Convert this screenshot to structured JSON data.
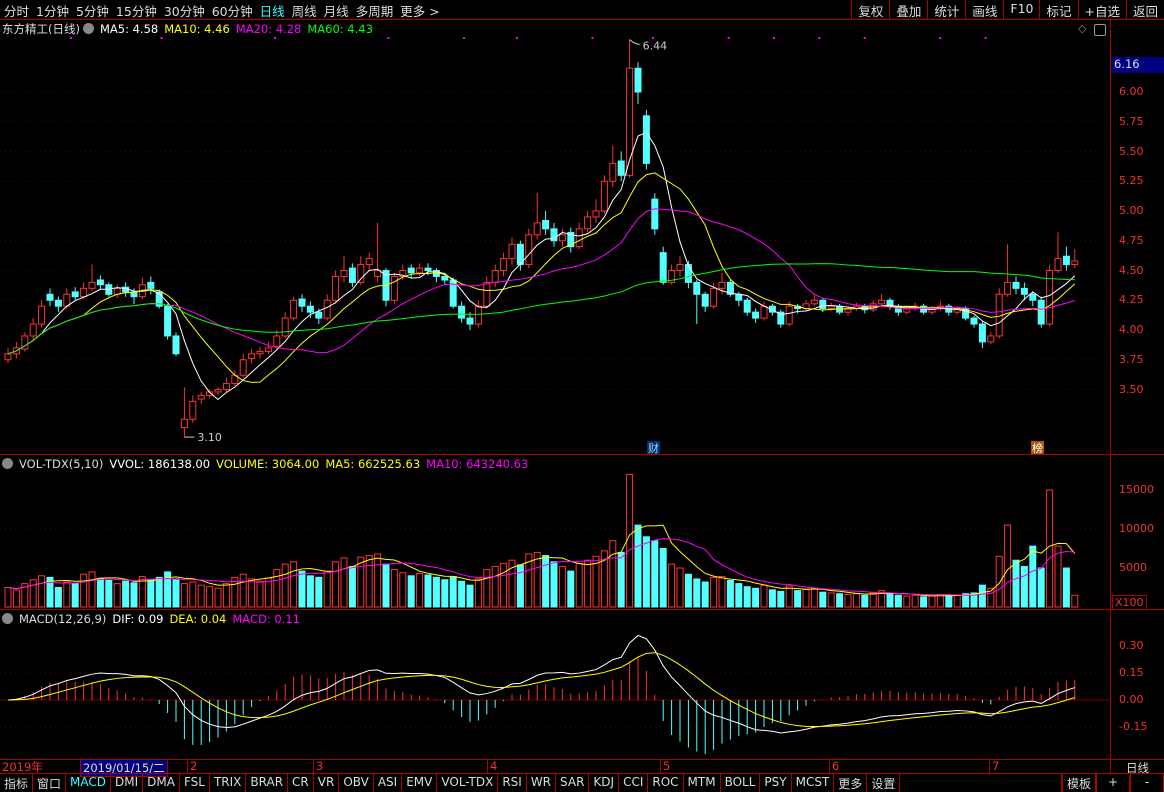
{
  "topbar": {
    "periods": [
      "分时",
      "1分钟",
      "5分钟",
      "15分钟",
      "30分钟",
      "60分钟",
      "日线",
      "周线",
      "月线",
      "多周期",
      "更多 >"
    ],
    "active": "日线",
    "actions": [
      "复权",
      "叠加",
      "统计",
      "画线",
      "F10",
      "标记",
      "+自选",
      "返回"
    ]
  },
  "price_legend": {
    "title": "东方精工(日线)",
    "ma5": "MA5: 4.58",
    "ma10": "MA10: 4.46",
    "ma20": "MA20: 4.28",
    "ma60": "MA60: 4.43"
  },
  "vol_legend": {
    "title": "VOL-TDX(5,10)",
    "vvol": "VVOL: 186138.00",
    "volume": "VOLUME: 3064.00",
    "ma5": "MA5: 662525.63",
    "ma10": "MA10: 643240.63"
  },
  "macd_legend": {
    "title": "MACD(12,26,9)",
    "dif": "DIF: 0.09",
    "dea": "DEA: 0.04",
    "macd": "MACD: 0.11"
  },
  "annotations": {
    "high": "6.44",
    "low": "3.10",
    "marker_cai": "财",
    "marker_bang": "榜",
    "cursor_price": "6.16",
    "vol_unit": "X100"
  },
  "dates": {
    "year": "2019年",
    "cursor_date": "2019/01/15/二",
    "months": [
      "2",
      "3",
      "4",
      "5",
      "6",
      "7"
    ],
    "period_label": "日线"
  },
  "bottombar": {
    "tabs": [
      "指标",
      "窗口",
      "MACD",
      "DMI",
      "DMA",
      "FSL",
      "TRIX",
      "BRAR",
      "CR",
      "VR",
      "OBV",
      "ASI",
      "EMV",
      "VOL-TDX",
      "RSI",
      "WR",
      "SAR",
      "KDJ",
      "CCI",
      "ROC",
      "MTM",
      "BOLL",
      "PSY",
      "MCST",
      "更多",
      "设置"
    ],
    "active": "MACD",
    "right": [
      "模板",
      "+",
      "-"
    ]
  },
  "colors": {
    "up": "#ff3232",
    "down": "#54ffff",
    "ma5": "#ffffff",
    "ma10": "#ffff00",
    "ma20": "#ff00ff",
    "ma60": "#00ff00",
    "axis": "#e33333"
  },
  "chart_data": [
    {
      "type": "candlestick",
      "title": "东方精工(日线)",
      "yticks": [
        "6.00",
        "5.75",
        "5.50",
        "5.25",
        "5.00",
        "4.75",
        "4.50",
        "4.25",
        "4.00",
        "3.75",
        "3.50"
      ],
      "ylim": [
        2.95,
        6.6
      ],
      "columns": [
        "open",
        "high",
        "low",
        "close",
        "volume"
      ],
      "candles": [
        [
          3.75,
          3.85,
          3.72,
          3.8,
          2500
        ],
        [
          3.8,
          3.9,
          3.76,
          3.85,
          2200
        ],
        [
          3.84,
          3.98,
          3.82,
          3.95,
          3000
        ],
        [
          3.95,
          4.1,
          3.92,
          4.05,
          3500
        ],
        [
          4.05,
          4.25,
          4.02,
          4.2,
          4000
        ],
        [
          4.3,
          4.35,
          4.2,
          4.25,
          3800
        ],
        [
          4.25,
          4.28,
          4.15,
          4.2,
          2500
        ],
        [
          4.2,
          4.35,
          4.18,
          4.3,
          3200
        ],
        [
          4.32,
          4.36,
          4.25,
          4.28,
          3000
        ],
        [
          4.28,
          4.4,
          4.26,
          4.35,
          4200
        ],
        [
          4.35,
          4.55,
          4.33,
          4.4,
          4500
        ],
        [
          4.42,
          4.46,
          4.34,
          4.38,
          3600
        ],
        [
          4.38,
          4.4,
          4.28,
          4.3,
          3400
        ],
        [
          4.3,
          4.38,
          4.27,
          4.35,
          3000
        ],
        [
          4.36,
          4.4,
          4.28,
          4.32,
          3300
        ],
        [
          4.32,
          4.35,
          4.22,
          4.28,
          3100
        ],
        [
          4.28,
          4.44,
          4.26,
          4.38,
          3900
        ],
        [
          4.4,
          4.45,
          4.3,
          4.35,
          3500
        ],
        [
          4.32,
          4.34,
          4.18,
          4.2,
          3800
        ],
        [
          4.2,
          4.22,
          3.92,
          3.95,
          4500
        ],
        [
          3.95,
          3.98,
          3.78,
          3.8,
          3600
        ],
        [
          3.18,
          3.52,
          3.1,
          3.25,
          3000
        ],
        [
          3.25,
          3.45,
          3.22,
          3.4,
          3200
        ],
        [
          3.42,
          3.48,
          3.38,
          3.45,
          2800
        ],
        [
          3.45,
          3.5,
          3.43,
          3.48,
          2600
        ],
        [
          3.48,
          3.52,
          3.45,
          3.5,
          2400
        ],
        [
          3.5,
          3.6,
          3.48,
          3.55,
          3000
        ],
        [
          3.55,
          3.66,
          3.53,
          3.62,
          3800
        ],
        [
          3.62,
          3.8,
          3.6,
          3.75,
          4200
        ],
        [
          3.76,
          3.84,
          3.72,
          3.8,
          3600
        ],
        [
          3.8,
          3.86,
          3.76,
          3.82,
          3300
        ],
        [
          3.82,
          3.9,
          3.8,
          3.85,
          3700
        ],
        [
          3.86,
          4.0,
          3.84,
          3.95,
          4800
        ],
        [
          3.95,
          4.15,
          3.93,
          4.1,
          5500
        ],
        [
          4.1,
          4.28,
          4.08,
          4.25,
          5800
        ],
        [
          4.26,
          4.3,
          4.15,
          4.2,
          4600
        ],
        [
          4.2,
          4.24,
          4.1,
          4.15,
          4000
        ],
        [
          4.15,
          4.18,
          4.05,
          4.1,
          3800
        ],
        [
          4.1,
          4.3,
          4.08,
          4.25,
          4600
        ],
        [
          4.25,
          4.5,
          4.22,
          4.45,
          5800
        ],
        [
          4.45,
          4.62,
          4.4,
          4.5,
          6300
        ],
        [
          4.52,
          4.56,
          4.36,
          4.4,
          5200
        ],
        [
          4.4,
          4.62,
          4.38,
          4.55,
          6400
        ],
        [
          4.55,
          4.65,
          4.5,
          4.6,
          6600
        ],
        [
          4.45,
          4.9,
          4.4,
          4.5,
          6800
        ],
        [
          4.5,
          4.52,
          4.2,
          4.25,
          5500
        ],
        [
          4.25,
          4.48,
          4.22,
          4.45,
          4800
        ],
        [
          4.45,
          4.55,
          4.42,
          4.5,
          4400
        ],
        [
          4.52,
          4.55,
          4.44,
          4.48,
          4000
        ],
        [
          4.48,
          4.56,
          4.45,
          4.52,
          4300
        ],
        [
          4.52,
          4.56,
          4.46,
          4.5,
          4100
        ],
        [
          4.5,
          4.52,
          4.4,
          4.45,
          3800
        ],
        [
          4.45,
          4.48,
          4.38,
          4.42,
          3500
        ],
        [
          4.42,
          4.44,
          4.18,
          4.2,
          3900
        ],
        [
          4.2,
          4.24,
          4.06,
          4.1,
          3300
        ],
        [
          4.1,
          4.15,
          4.0,
          4.05,
          2800
        ],
        [
          4.05,
          4.25,
          4.02,
          4.2,
          3600
        ],
        [
          4.2,
          4.45,
          4.18,
          4.4,
          4800
        ],
        [
          4.4,
          4.55,
          4.36,
          4.5,
          5200
        ],
        [
          4.5,
          4.65,
          4.45,
          4.6,
          5600
        ],
        [
          4.6,
          4.78,
          4.55,
          4.72,
          6000
        ],
        [
          4.72,
          4.75,
          4.5,
          4.55,
          5400
        ],
        [
          4.55,
          4.85,
          4.52,
          4.8,
          6800
        ],
        [
          4.8,
          5.15,
          4.76,
          4.9,
          7000
        ],
        [
          4.92,
          5.0,
          4.8,
          4.85,
          6600
        ],
        [
          4.85,
          4.9,
          4.7,
          4.75,
          5800
        ],
        [
          4.75,
          4.85,
          4.7,
          4.8,
          5200
        ],
        [
          4.82,
          4.86,
          4.65,
          4.7,
          4600
        ],
        [
          4.7,
          4.9,
          4.68,
          4.85,
          5600
        ],
        [
          4.85,
          5.0,
          4.82,
          4.95,
          6000
        ],
        [
          4.95,
          5.1,
          4.9,
          5.0,
          6500
        ],
        [
          5.0,
          5.3,
          4.98,
          5.25,
          7200
        ],
        [
          5.25,
          5.55,
          5.2,
          5.4,
          8500
        ],
        [
          5.42,
          5.5,
          5.25,
          5.3,
          7000
        ],
        [
          5.3,
          6.44,
          5.28,
          6.2,
          17000
        ],
        [
          6.2,
          6.25,
          5.9,
          6.0,
          10500
        ],
        [
          5.8,
          5.85,
          5.35,
          5.4,
          9000
        ],
        [
          5.1,
          5.15,
          4.8,
          4.85,
          8500
        ],
        [
          4.65,
          4.7,
          4.38,
          4.4,
          7500
        ],
        [
          4.4,
          4.55,
          4.38,
          4.5,
          5500
        ],
        [
          4.5,
          4.62,
          4.45,
          4.55,
          5000
        ],
        [
          4.55,
          4.58,
          4.35,
          4.4,
          4200
        ],
        [
          4.4,
          4.42,
          4.05,
          4.3,
          3600
        ],
        [
          4.3,
          4.32,
          4.15,
          4.2,
          3200
        ],
        [
          4.2,
          4.4,
          4.18,
          4.35,
          3800
        ],
        [
          4.35,
          4.48,
          4.3,
          4.4,
          3900
        ],
        [
          4.4,
          4.42,
          4.28,
          4.3,
          3400
        ],
        [
          4.3,
          4.32,
          4.2,
          4.25,
          3000
        ],
        [
          4.25,
          4.27,
          4.12,
          4.15,
          2600
        ],
        [
          4.15,
          4.18,
          4.06,
          4.1,
          2400
        ],
        [
          4.1,
          4.24,
          4.08,
          4.2,
          2800
        ],
        [
          4.2,
          4.22,
          4.12,
          4.15,
          2200
        ],
        [
          4.15,
          4.17,
          4.02,
          4.05,
          2000
        ],
        [
          4.05,
          4.24,
          4.03,
          4.2,
          2700
        ],
        [
          4.2,
          4.22,
          4.14,
          4.18,
          2100
        ],
        [
          4.18,
          4.25,
          4.16,
          4.22,
          2300
        ],
        [
          4.22,
          4.3,
          4.2,
          4.25,
          2400
        ],
        [
          4.25,
          4.27,
          4.15,
          4.18,
          1900
        ],
        [
          4.18,
          4.23,
          4.16,
          4.2,
          1800
        ],
        [
          4.2,
          4.22,
          4.13,
          4.15,
          1700
        ],
        [
          4.15,
          4.2,
          4.12,
          4.18,
          1600
        ],
        [
          4.18,
          4.23,
          4.16,
          4.2,
          1700
        ],
        [
          4.2,
          4.22,
          4.14,
          4.17,
          1500
        ],
        [
          4.17,
          4.25,
          4.15,
          4.22,
          1800
        ],
        [
          4.22,
          4.3,
          4.2,
          4.25,
          2100
        ],
        [
          4.25,
          4.27,
          4.17,
          4.2,
          1700
        ],
        [
          4.2,
          4.22,
          4.12,
          4.15,
          1500
        ],
        [
          4.15,
          4.2,
          4.13,
          4.18,
          1400
        ],
        [
          4.18,
          4.23,
          4.16,
          4.2,
          1500
        ],
        [
          4.2,
          4.22,
          4.13,
          4.15,
          1300
        ],
        [
          4.15,
          4.2,
          4.13,
          4.18,
          1400
        ],
        [
          4.18,
          4.24,
          4.16,
          4.2,
          1600
        ],
        [
          4.2,
          4.22,
          4.12,
          4.15,
          1500
        ],
        [
          4.15,
          4.2,
          4.13,
          4.18,
          1500
        ],
        [
          4.18,
          4.2,
          4.08,
          4.1,
          1700
        ],
        [
          4.1,
          4.12,
          4.02,
          4.05,
          1800
        ],
        [
          4.05,
          4.07,
          3.85,
          3.9,
          2800
        ],
        [
          3.9,
          3.98,
          3.88,
          3.95,
          2400
        ],
        [
          3.95,
          4.35,
          3.93,
          4.3,
          6500
        ],
        [
          4.3,
          4.72,
          4.28,
          4.4,
          10500
        ],
        [
          4.4,
          4.45,
          4.3,
          4.35,
          6000
        ],
        [
          4.35,
          4.4,
          4.25,
          4.3,
          5200
        ],
        [
          4.3,
          4.32,
          4.2,
          4.25,
          7800
        ],
        [
          4.25,
          4.28,
          4.02,
          4.05,
          5000
        ],
        [
          4.05,
          4.55,
          4.03,
          4.5,
          15000
        ],
        [
          4.5,
          4.82,
          4.48,
          4.6,
          7800
        ],
        [
          4.62,
          4.7,
          4.5,
          4.55,
          5000
        ],
        [
          4.55,
          4.68,
          4.52,
          4.58,
          1500
        ]
      ]
    },
    {
      "type": "bar",
      "title": "VOL-TDX(5,10)",
      "yticks": [
        "15000",
        "10000",
        "5000"
      ],
      "ylim": [
        0,
        17500
      ],
      "unit": "X100"
    },
    {
      "type": "bar+line",
      "title": "MACD(12,26,9)",
      "yticks": [
        "0.30",
        "0.15",
        "0.00",
        "-0.15"
      ],
      "ylim": [
        -0.22,
        0.42
      ]
    }
  ]
}
